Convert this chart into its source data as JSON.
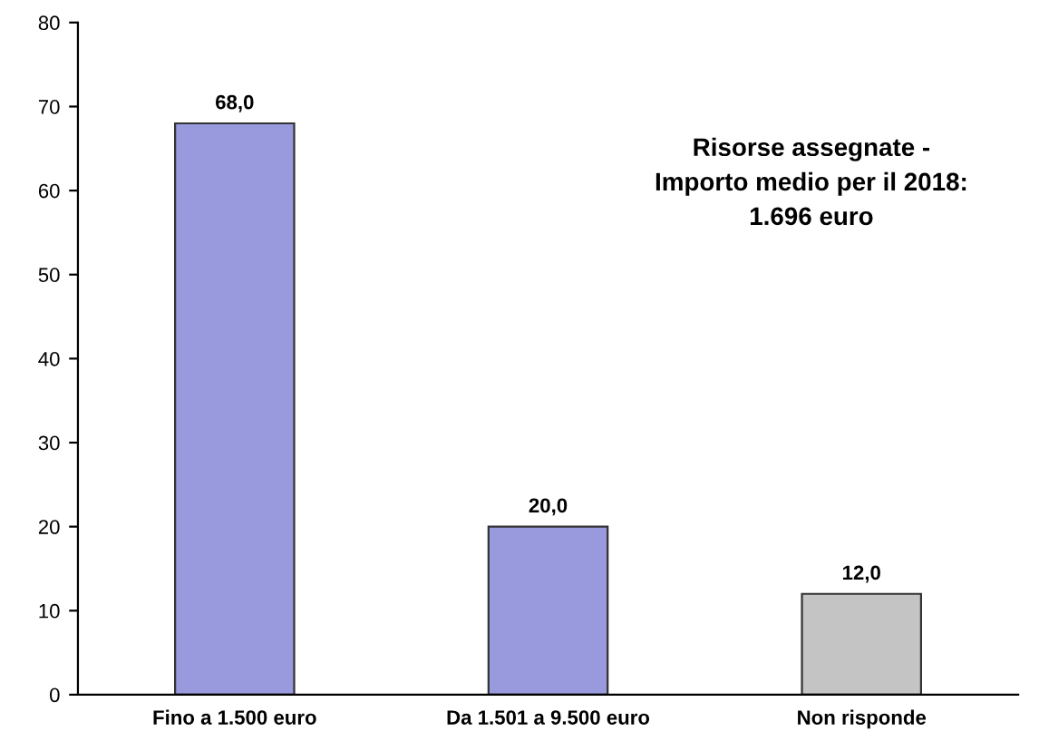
{
  "chart_data": {
    "type": "bar",
    "categories": [
      "Fino a 1.500 euro",
      "Da 1.501 a 9.500 euro",
      "Non risponde"
    ],
    "values": [
      68.0,
      20.0,
      12.0
    ],
    "colors": [
      "#9999dd",
      "#9999dd",
      "#c4c4c4"
    ],
    "value_labels": [
      "68,0",
      "20,0",
      "12,0"
    ],
    "ylim": [
      0,
      80
    ],
    "yticks": [
      0,
      10,
      20,
      30,
      40,
      50,
      60,
      70,
      80
    ],
    "grid": false,
    "legend": false,
    "annotations": [
      "Risorse assegnate -\nImporto medio per il 2018:\n1.696 euro"
    ]
  }
}
